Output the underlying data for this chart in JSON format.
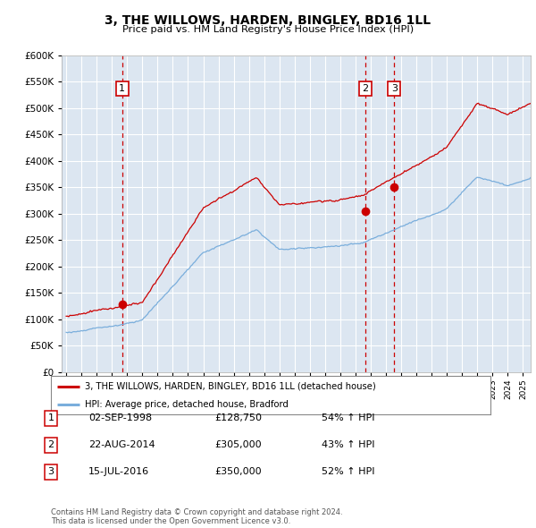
{
  "title": "3, THE WILLOWS, HARDEN, BINGLEY, BD16 1LL",
  "subtitle": "Price paid vs. HM Land Registry's House Price Index (HPI)",
  "background_color": "#ffffff",
  "plot_bg_color": "#dce6f1",
  "sale_color": "#cc0000",
  "hpi_color": "#7aaedc",
  "vline_color": "#cc0000",
  "sale_dates_num": [
    1998.67,
    2014.64,
    2016.54
  ],
  "sale_prices": [
    128750,
    305000,
    350000
  ],
  "sale_labels": [
    "1",
    "2",
    "3"
  ],
  "legend_sale_label": "3, THE WILLOWS, HARDEN, BINGLEY, BD16 1LL (detached house)",
  "legend_hpi_label": "HPI: Average price, detached house, Bradford",
  "table_rows": [
    {
      "num": "1",
      "date": "02-SEP-1998",
      "price": "£128,750",
      "change": "54% ↑ HPI"
    },
    {
      "num": "2",
      "date": "22-AUG-2014",
      "price": "£305,000",
      "change": "43% ↑ HPI"
    },
    {
      "num": "3",
      "date": "15-JUL-2016",
      "price": "£350,000",
      "change": "52% ↑ HPI"
    }
  ],
  "footer": "Contains HM Land Registry data © Crown copyright and database right 2024.\nThis data is licensed under the Open Government Licence v3.0.",
  "ylim": [
    0,
    600000
  ],
  "yticks": [
    0,
    50000,
    100000,
    150000,
    200000,
    250000,
    300000,
    350000,
    400000,
    450000,
    500000,
    550000,
    600000
  ],
  "xlim_left": 1994.7,
  "xlim_right": 2025.5
}
